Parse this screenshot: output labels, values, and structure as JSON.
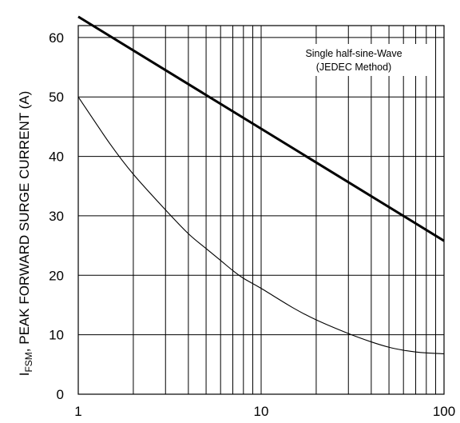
{
  "chart_data": {
    "type": "line",
    "title": "",
    "xlabel": "",
    "ylabel": {
      "main": "I",
      "subscript": "FSM",
      "rest": ", PEAK FORWARD SURGE CURRENT (A)"
    },
    "xscale": "log",
    "xlim": [
      1,
      100
    ],
    "ylim": [
      0,
      62
    ],
    "x_ticks": [
      1,
      10,
      100
    ],
    "x_tick_labels": [
      "1",
      "10",
      "100"
    ],
    "y_ticks": [
      0,
      10,
      20,
      30,
      40,
      50,
      60
    ],
    "y_tick_labels": [
      "0",
      "10",
      "20",
      "30",
      "40",
      "50",
      "60"
    ],
    "grid": true,
    "annotation": [
      "Single half-sine-Wave",
      "(JEDEC Method)"
    ],
    "series": [
      {
        "style": "bold",
        "x": [
          1,
          100
        ],
        "y": [
          63.5,
          25.8
        ]
      },
      {
        "style": "thin",
        "x": [
          1,
          1.5,
          2,
          3,
          4,
          5,
          6,
          7,
          8,
          10,
          15,
          20,
          30,
          40,
          50,
          60,
          70,
          80,
          100
        ],
        "y": [
          50,
          42,
          37,
          31,
          27,
          24.5,
          22.5,
          20.8,
          19.5,
          17.8,
          14.5,
          12.5,
          10.2,
          8.8,
          7.9,
          7.4,
          7.1,
          6.95,
          6.8
        ]
      }
    ]
  }
}
